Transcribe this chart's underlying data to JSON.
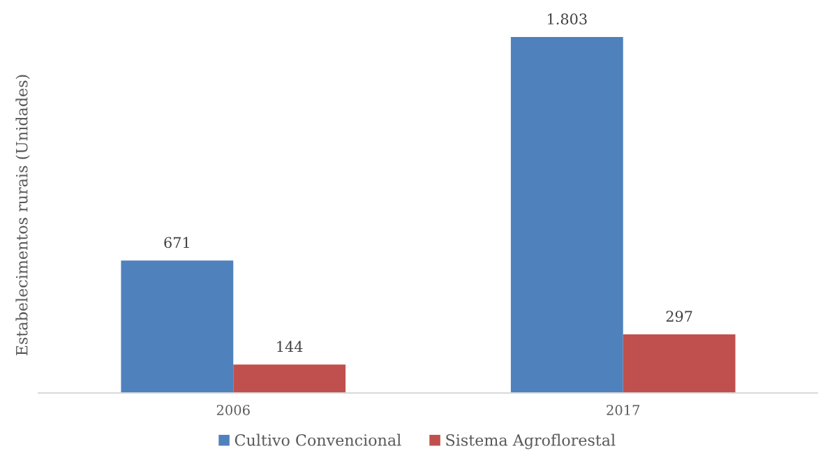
{
  "chart_data": {
    "type": "bar",
    "ylabel": "Estabelecimentos rurais (Unidades)",
    "categories": [
      "2006",
      "2017"
    ],
    "series": [
      {
        "name": "Cultivo Convencional",
        "color": "#4f81bd",
        "values": [
          671,
          1803
        ],
        "value_labels": [
          "671",
          "1.803"
        ]
      },
      {
        "name": "Sistema Agroflorestal",
        "color": "#c0504d",
        "values": [
          144,
          297
        ],
        "value_labels": [
          "144",
          "297"
        ]
      }
    ],
    "legend": "bottom",
    "tick_labels": "x"
  }
}
